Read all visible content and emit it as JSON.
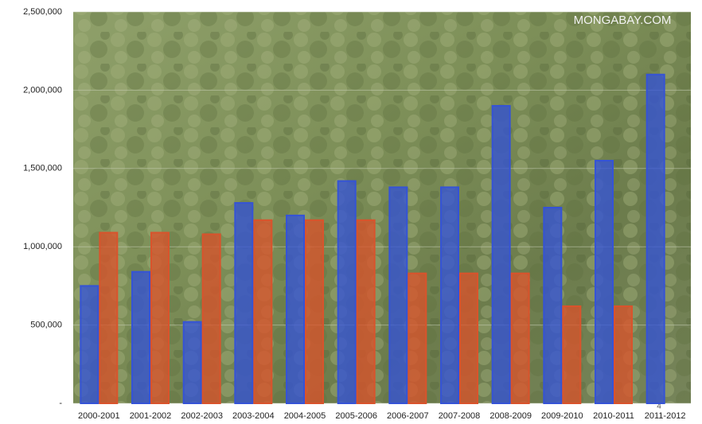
{
  "chart_data": {
    "type": "bar",
    "annotations": [
      "MONGABAY.COM",
      "4"
    ],
    "categories": [
      "2000-2001",
      "2001-2002",
      "2002-2003",
      "2003-2004",
      "2004-2005",
      "2005-2006",
      "2006-2007",
      "2007-2008",
      "2008-2009",
      "2009-2010",
      "2010-2011",
      "2011-2012"
    ],
    "series": [
      {
        "color": "#3553d6",
        "values": [
          750000,
          840000,
          520000,
          1280000,
          1200000,
          1420000,
          1380000,
          1380000,
          1900000,
          1250000,
          1550000,
          2100000
        ]
      },
      {
        "color": "#d9532c",
        "values": [
          1090000,
          1090000,
          1080000,
          1170000,
          1170000,
          1170000,
          830000,
          830000,
          830000,
          620000,
          620000,
          null
        ]
      }
    ],
    "ylim": [
      0,
      2500000
    ],
    "yticks": [
      {
        "value": 0,
        "label": "-"
      },
      {
        "value": 500000,
        "label": "500,000"
      },
      {
        "value": 1000000,
        "label": "1,000,000"
      },
      {
        "value": 1500000,
        "label": "1,500,000"
      },
      {
        "value": 2000000,
        "label": "2,000,000"
      },
      {
        "value": 2500000,
        "label": "2,500,000"
      }
    ],
    "grid": true
  }
}
